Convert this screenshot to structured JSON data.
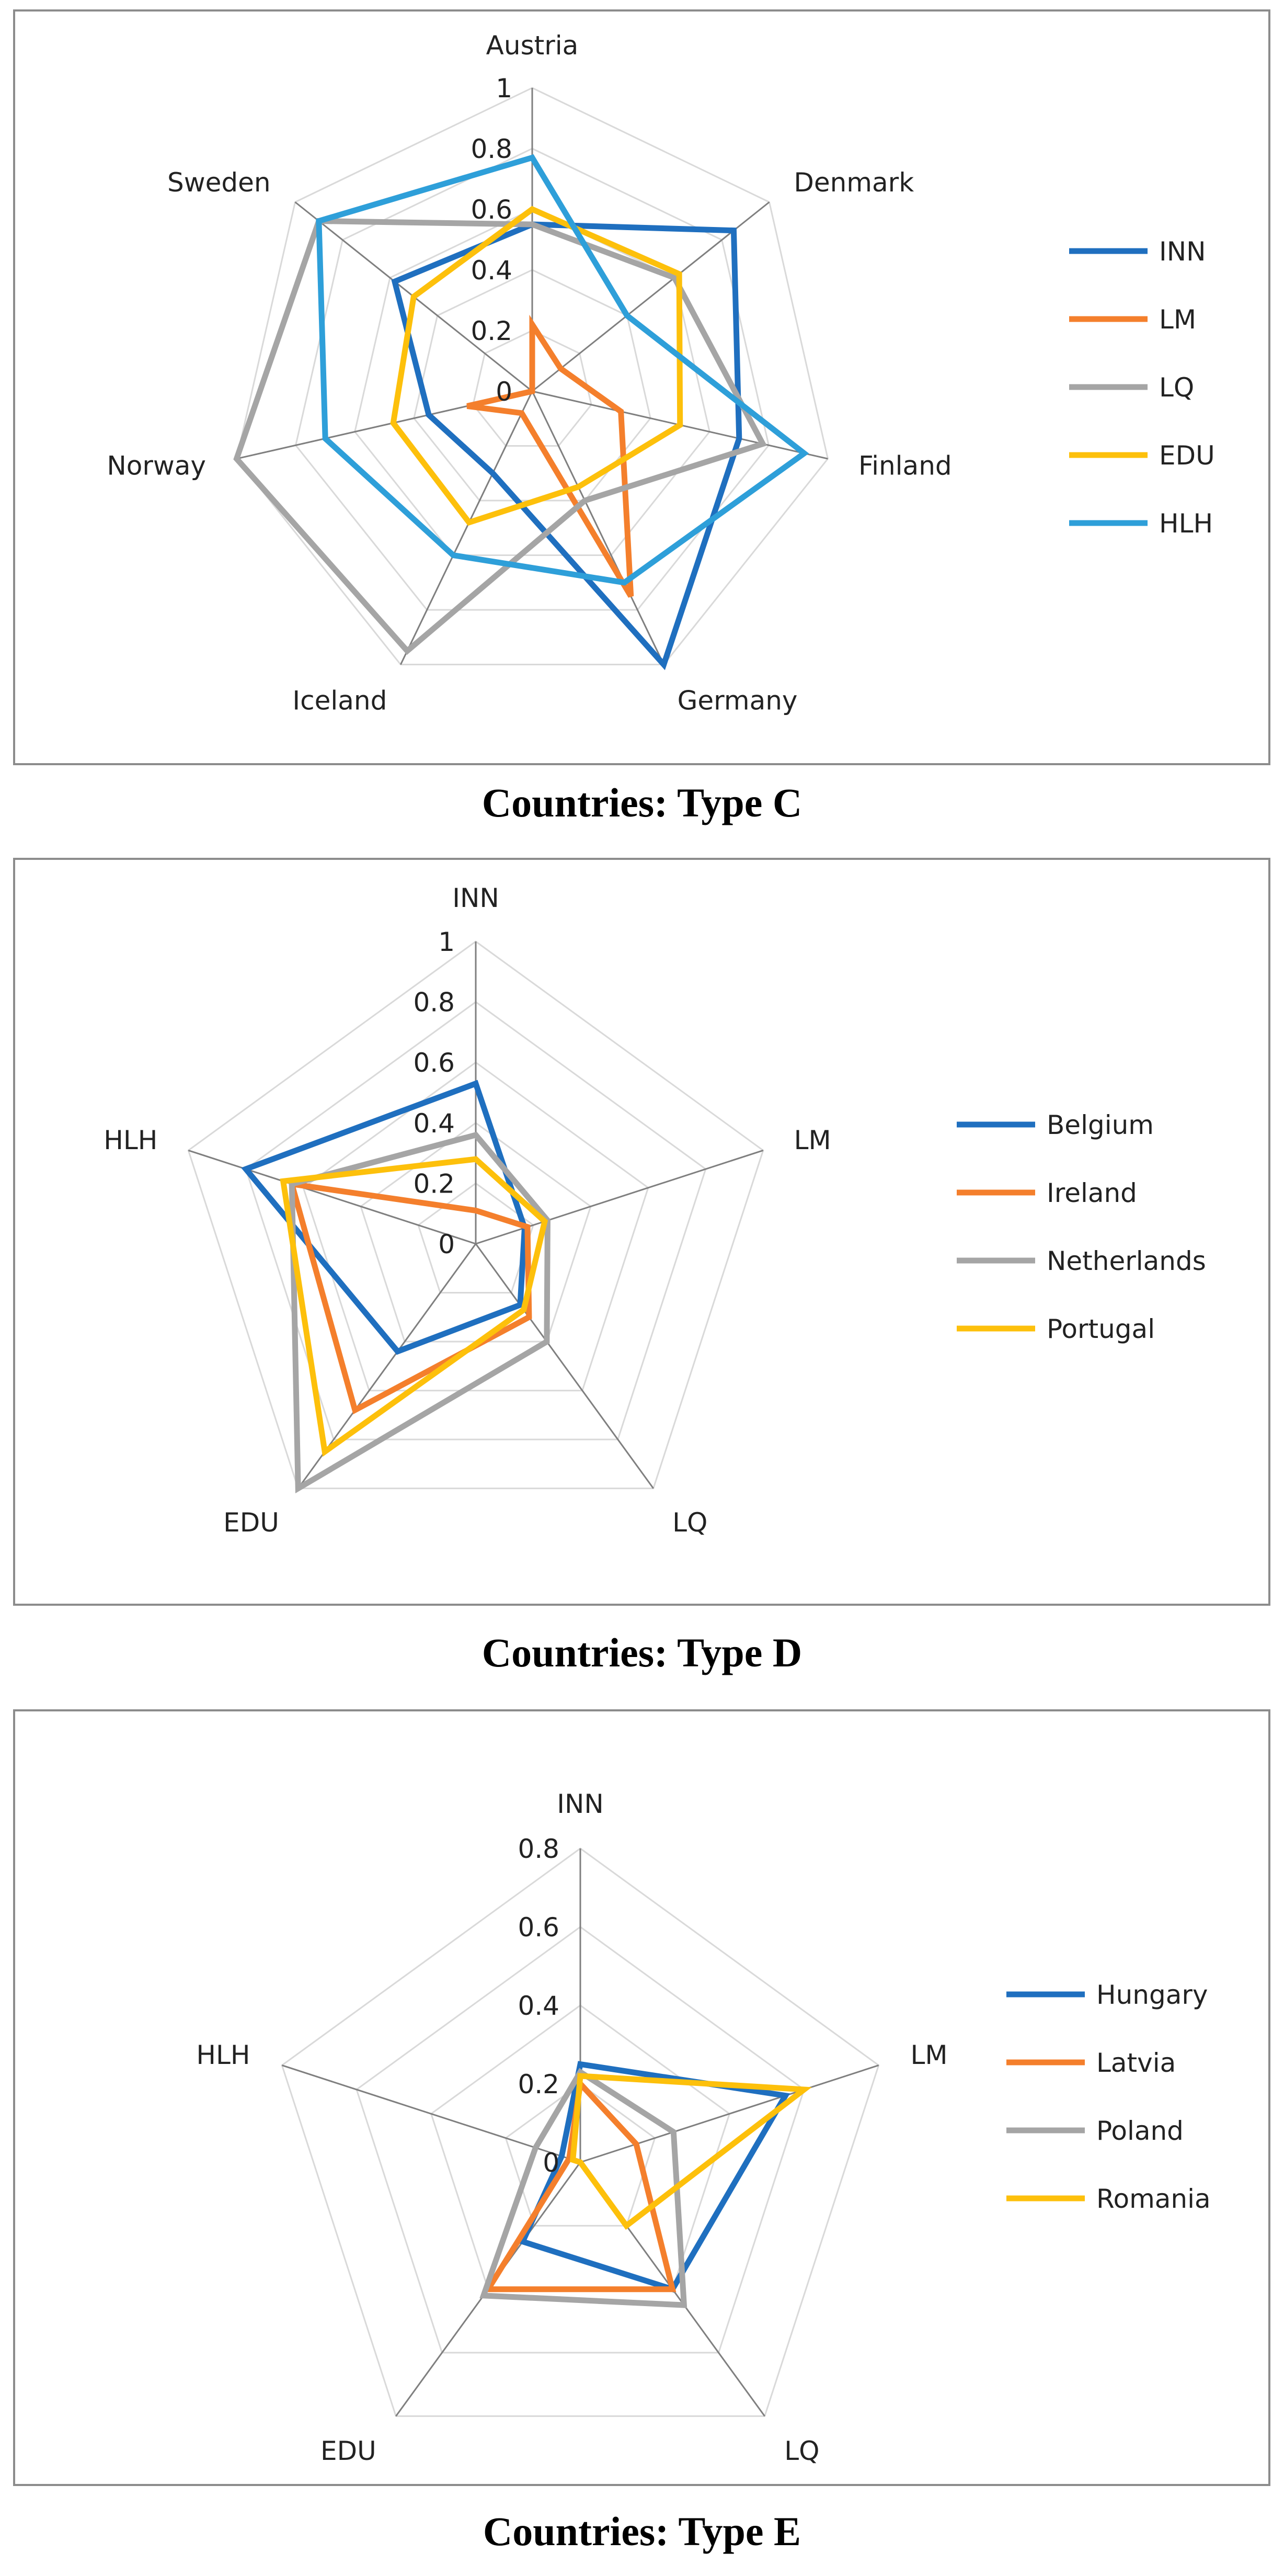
{
  "colors": {
    "blue": "#1f6fbf",
    "orange": "#f47f2c",
    "gray": "#a5a5a5",
    "yellow": "#fdc00b",
    "lightblue": "#2e9fd9",
    "grid": "#d9d9d9",
    "spoke": "#7f7f7f"
  },
  "chart_data": [
    {
      "type": "radar",
      "title": "Countries: Type C",
      "axes": [
        "Austria",
        "Denmark",
        "Finland",
        "Germany",
        "Iceland",
        "Norway",
        "Sweden"
      ],
      "rmax": 1,
      "ticks": [
        0,
        0.2,
        0.4,
        0.6,
        0.8,
        1
      ],
      "tick_labels": [
        "0",
        "0.2",
        "0.4",
        "0.6",
        "0.8",
        "1"
      ],
      "legend_position": "right",
      "series": [
        {
          "name": "INN",
          "color": "#1f6fbf",
          "values": [
            0.55,
            0.85,
            0.7,
            1.0,
            0.3,
            0.35,
            0.58
          ]
        },
        {
          "name": "LM",
          "color": "#f47f2c",
          "values": [
            0.22,
            0.12,
            0.3,
            0.75,
            0.08,
            0.22,
            0.0
          ]
        },
        {
          "name": "LQ",
          "color": "#a5a5a5",
          "values": [
            0.55,
            0.6,
            0.78,
            0.4,
            0.95,
            1.0,
            0.9
          ]
        },
        {
          "name": "EDU",
          "color": "#fdc00b",
          "values": [
            0.6,
            0.62,
            0.5,
            0.35,
            0.48,
            0.47,
            0.5
          ]
        },
        {
          "name": "HLH",
          "color": "#2e9fd9",
          "values": [
            0.77,
            0.4,
            0.92,
            0.7,
            0.6,
            0.7,
            0.9
          ]
        }
      ]
    },
    {
      "type": "radar",
      "title": "Countries: Type D",
      "axes": [
        "INN",
        "LM",
        "LQ",
        "EDU",
        "HLH"
      ],
      "rmax": 1,
      "ticks": [
        0,
        0.2,
        0.4,
        0.6,
        0.8,
        1
      ],
      "tick_labels": [
        "0",
        "0.2",
        "0.4",
        "0.6",
        "0.8",
        "1"
      ],
      "legend_position": "right",
      "series": [
        {
          "name": "Belgium",
          "color": "#1f6fbf",
          "values": [
            0.53,
            0.17,
            0.25,
            0.44,
            0.8
          ]
        },
        {
          "name": "Ireland",
          "color": "#f47f2c",
          "values": [
            0.11,
            0.18,
            0.3,
            0.68,
            0.64
          ]
        },
        {
          "name": "Netherlands",
          "color": "#a5a5a5",
          "values": [
            0.36,
            0.25,
            0.4,
            1.0,
            0.64
          ]
        },
        {
          "name": "Portugal",
          "color": "#fdc00b",
          "values": [
            0.28,
            0.24,
            0.27,
            0.85,
            0.67
          ]
        }
      ]
    },
    {
      "type": "radar",
      "title": "Countries: Type E",
      "axes": [
        "INN",
        "LM",
        "LQ",
        "EDU",
        "HLH"
      ],
      "rmax": 0.8,
      "ticks": [
        0,
        0.2,
        0.4,
        0.6,
        0.8
      ],
      "tick_labels": [
        "0",
        "0.2",
        "0.4",
        "0.6",
        "0.8"
      ],
      "legend_position": "right",
      "series": [
        {
          "name": "Hungary",
          "color": "#1f6fbf",
          "values": [
            0.25,
            0.55,
            0.4,
            0.25,
            0.05
          ]
        },
        {
          "name": "Latvia",
          "color": "#f47f2c",
          "values": [
            0.2,
            0.15,
            0.4,
            0.4,
            0.03
          ]
        },
        {
          "name": "Poland",
          "color": "#a5a5a5",
          "values": [
            0.23,
            0.25,
            0.45,
            0.42,
            0.12
          ]
        },
        {
          "name": "Romania",
          "color": "#fdc00b",
          "values": [
            0.22,
            0.6,
            0.2,
            0.0,
            0.02
          ]
        }
      ]
    }
  ]
}
